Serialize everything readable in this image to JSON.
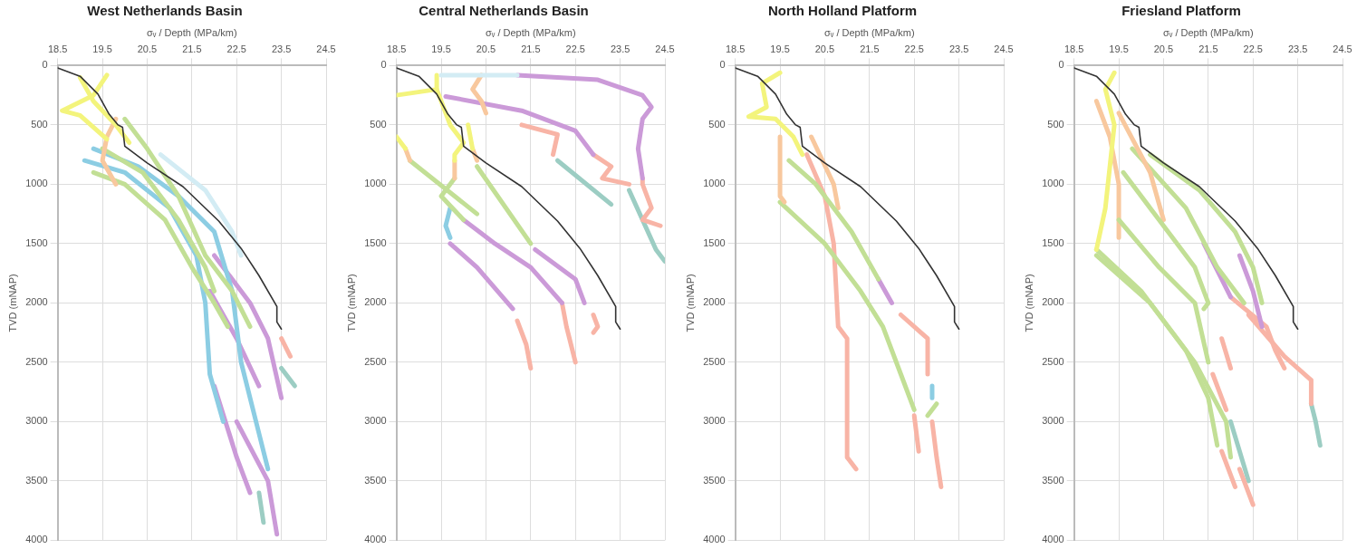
{
  "chart_data": [
    {
      "type": "line",
      "title": "West Netherlands Basin",
      "xlabel": "σᵥ / Depth (MPa/km)",
      "ylabel": "TVD (mNAP)",
      "xlim": [
        18.5,
        24.5
      ],
      "xticks": [
        18.5,
        19.5,
        20.5,
        21.5,
        22.5,
        23.5,
        24.5
      ],
      "ylim": [
        4000,
        0
      ],
      "yticks": [
        0,
        500,
        1000,
        1500,
        2000,
        2500,
        3000,
        3500,
        4000
      ],
      "grid": true,
      "legend": false,
      "marker": "none",
      "line_style": "solid",
      "series": [
        {
          "color": "#333333",
          "x": [
            18.5,
            19.0,
            19.4,
            19.65,
            19.85,
            19.95,
            20.0,
            20.5,
            21.3,
            22.1,
            22.6,
            23.0,
            23.4,
            23.4,
            23.5
          ],
          "values": [
            20,
            90,
            240,
            410,
            500,
            520,
            680,
            820,
            1020,
            1310,
            1540,
            1770,
            2030,
            2160,
            2220
          ]
        },
        {
          "color": "#f3f47c",
          "x": [
            19.6,
            19.3,
            18.6,
            19.0,
            19.6
          ],
          "values": [
            80,
            250,
            380,
            420,
            620
          ]
        },
        {
          "color": "#f3f47c",
          "x": [
            19.0,
            19.3,
            19.8,
            20.1
          ],
          "values": [
            100,
            300,
            500,
            650
          ]
        },
        {
          "color": "#f8c89e",
          "x": [
            19.8,
            19.6,
            19.5,
            19.8
          ],
          "values": [
            450,
            600,
            800,
            1000
          ]
        },
        {
          "color": "#c2df95",
          "x": [
            20.0,
            20.5,
            21.2,
            21.8,
            22.4,
            22.8
          ],
          "values": [
            450,
            700,
            1100,
            1600,
            1900,
            2200
          ]
        },
        {
          "color": "#c2df95",
          "x": [
            19.3,
            20.0,
            20.9,
            21.5,
            22.0,
            22.3
          ],
          "values": [
            900,
            1000,
            1300,
            1700,
            2000,
            2200
          ]
        },
        {
          "color": "#c2df95",
          "x": [
            19.5,
            20.4,
            21.2,
            21.8,
            22.0
          ],
          "values": [
            700,
            900,
            1300,
            1700,
            1900
          ]
        },
        {
          "color": "#8ccde3",
          "x": [
            19.3,
            20.3,
            21.2,
            22.0,
            22.4,
            22.6,
            23.0,
            23.2
          ],
          "values": [
            700,
            850,
            1100,
            1400,
            1900,
            2500,
            3100,
            3400
          ]
        },
        {
          "color": "#8ccde3",
          "x": [
            19.1,
            20.0,
            21.0,
            21.6,
            21.8,
            21.9,
            22.2
          ],
          "values": [
            800,
            900,
            1200,
            1600,
            2000,
            2600,
            3000
          ]
        },
        {
          "color": "#d3ecf4",
          "x": [
            20.8,
            21.8,
            22.4,
            22.6
          ],
          "values": [
            750,
            1050,
            1400,
            1600
          ]
        },
        {
          "color": "#cb9ad8",
          "x": [
            22.0,
            22.8,
            23.2,
            23.5
          ],
          "values": [
            1600,
            2000,
            2300,
            2800
          ]
        },
        {
          "color": "#cb9ad8",
          "x": [
            21.9,
            22.5,
            23.0
          ],
          "values": [
            1900,
            2300,
            2700
          ]
        },
        {
          "color": "#cb9ad8",
          "x": [
            22.0,
            22.5,
            22.8
          ],
          "values": [
            2700,
            3300,
            3600
          ]
        },
        {
          "color": "#cb9ad8",
          "x": [
            22.5,
            23.2,
            23.4
          ],
          "values": [
            3000,
            3500,
            3950
          ]
        },
        {
          "color": "#9ccdc3",
          "x": [
            23.5,
            23.8
          ],
          "values": [
            2550,
            2700
          ]
        },
        {
          "color": "#9ccdc3",
          "x": [
            23.0,
            23.1
          ],
          "values": [
            3600,
            3850
          ]
        },
        {
          "color": "#f8b4a6",
          "x": [
            23.5,
            23.7
          ],
          "values": [
            2300,
            2450
          ]
        }
      ]
    },
    {
      "type": "line",
      "title": "Central Netherlands Basin",
      "xlabel": "σᵥ / Depth (MPa/km)",
      "ylabel": "TVD (mNAP)",
      "xlim": [
        18.5,
        24.5
      ],
      "xticks": [
        18.5,
        19.5,
        20.5,
        21.5,
        22.5,
        23.5,
        24.5
      ],
      "ylim": [
        4000,
        0
      ],
      "yticks": [
        0,
        500,
        1000,
        1500,
        2000,
        2500,
        3000,
        3500,
        4000
      ],
      "grid": true,
      "legend": false,
      "marker": "none",
      "line_style": "solid",
      "series": [
        {
          "color": "#333333",
          "x": [
            18.5,
            19.0,
            19.4,
            19.65,
            19.85,
            19.95,
            20.0,
            20.5,
            21.3,
            22.1,
            22.6,
            23.0,
            23.4,
            23.4,
            23.5
          ],
          "values": [
            20,
            90,
            240,
            410,
            500,
            520,
            680,
            820,
            1020,
            1310,
            1540,
            1770,
            2030,
            2160,
            2220
          ]
        },
        {
          "color": "#d3ecf4",
          "x": [
            19.5,
            21.2
          ],
          "values": [
            80,
            80
          ]
        },
        {
          "color": "#cb9ad8",
          "x": [
            21.2,
            23.0,
            24.0,
            24.2,
            24.0,
            23.9,
            24.0
          ],
          "values": [
            80,
            120,
            250,
            350,
            450,
            700,
            950
          ]
        },
        {
          "color": "#f8b4a6",
          "x": [
            24.0,
            24.0,
            24.2,
            24.0,
            24.4
          ],
          "values": [
            950,
            1000,
            1200,
            1300,
            1350
          ]
        },
        {
          "color": "#9ccdc3",
          "x": [
            23.7,
            24.3,
            24.5
          ],
          "values": [
            1050,
            1550,
            1650
          ]
        },
        {
          "color": "#f8c89e",
          "x": [
            20.4,
            20.2,
            20.4,
            20.5
          ],
          "values": [
            80,
            200,
            300,
            400
          ]
        },
        {
          "color": "#cb9ad8",
          "x": [
            19.6,
            21.3,
            22.5,
            22.9
          ],
          "values": [
            260,
            380,
            550,
            750
          ]
        },
        {
          "color": "#f8b4a6",
          "x": [
            21.3,
            22.1,
            22.0
          ],
          "values": [
            500,
            580,
            750
          ]
        },
        {
          "color": "#9ccdc3",
          "x": [
            22.1,
            23.3
          ],
          "values": [
            800,
            1170
          ]
        },
        {
          "color": "#f8b4a6",
          "x": [
            22.9,
            23.3,
            23.1,
            23.7
          ],
          "values": [
            750,
            850,
            950,
            1000
          ]
        },
        {
          "color": "#f3f47c",
          "x": [
            19.4,
            19.4,
            18.5
          ],
          "values": [
            80,
            200,
            250
          ]
        },
        {
          "color": "#f3f47c",
          "x": [
            19.4,
            19.7,
            20.0,
            19.8,
            19.8
          ],
          "values": [
            200,
            500,
            650,
            750,
            800
          ]
        },
        {
          "color": "#f8c89e",
          "x": [
            19.8,
            19.8
          ],
          "values": [
            800,
            950
          ]
        },
        {
          "color": "#c2df95",
          "x": [
            19.8,
            19.5,
            20.0
          ],
          "values": [
            950,
            1100,
            1300
          ]
        },
        {
          "color": "#cb9ad8",
          "x": [
            20.0,
            20.7,
            21.5,
            22.2
          ],
          "values": [
            1300,
            1500,
            1700,
            2000
          ]
        },
        {
          "color": "#f8b4a6",
          "x": [
            22.2,
            22.3,
            22.5
          ],
          "values": [
            2000,
            2200,
            2500
          ]
        },
        {
          "color": "#f3f47c",
          "x": [
            20.1,
            20.2
          ],
          "values": [
            500,
            700
          ]
        },
        {
          "color": "#f8c89e",
          "x": [
            20.2,
            20.3
          ],
          "values": [
            700,
            800
          ]
        },
        {
          "color": "#c2df95",
          "x": [
            20.3,
            21.5
          ],
          "values": [
            850,
            1500
          ]
        },
        {
          "color": "#cb9ad8",
          "x": [
            21.6,
            22.5,
            22.7
          ],
          "values": [
            1550,
            1800,
            2000
          ]
        },
        {
          "color": "#f8b4a6",
          "x": [
            22.9,
            23.0,
            22.9
          ],
          "values": [
            2100,
            2200,
            2250
          ]
        },
        {
          "color": "#f3f47c",
          "x": [
            18.5,
            18.7
          ],
          "values": [
            600,
            700
          ]
        },
        {
          "color": "#f8c89e",
          "x": [
            18.7,
            18.8
          ],
          "values": [
            700,
            800
          ]
        },
        {
          "color": "#c2df95",
          "x": [
            18.8,
            19.8,
            20.3
          ],
          "values": [
            800,
            1100,
            1250
          ]
        },
        {
          "color": "#8ccde3",
          "x": [
            19.7,
            19.6,
            19.7
          ],
          "values": [
            1200,
            1350,
            1450
          ]
        },
        {
          "color": "#cb9ad8",
          "x": [
            19.7,
            20.3,
            21.1
          ],
          "values": [
            1500,
            1700,
            2050
          ]
        },
        {
          "color": "#f8b4a6",
          "x": [
            21.2,
            21.4,
            21.5
          ],
          "values": [
            2150,
            2350,
            2550
          ]
        }
      ]
    },
    {
      "type": "line",
      "title": "North Holland Platform",
      "xlabel": "σᵥ / Depth (MPa/km)",
      "ylabel": "TVD (mNAP)",
      "xlim": [
        18.5,
        24.5
      ],
      "xticks": [
        18.5,
        19.5,
        20.5,
        21.5,
        22.5,
        23.5,
        24.5
      ],
      "ylim": [
        4000,
        0
      ],
      "yticks": [
        0,
        500,
        1000,
        1500,
        2000,
        2500,
        3000,
        3500,
        4000
      ],
      "grid": true,
      "legend": false,
      "marker": "none",
      "line_style": "solid",
      "series": [
        {
          "color": "#333333",
          "x": [
            18.5,
            19.0,
            19.4,
            19.65,
            19.85,
            19.95,
            20.0,
            20.5,
            21.3,
            22.1,
            22.6,
            23.0,
            23.4,
            23.4,
            23.5
          ],
          "values": [
            20,
            90,
            240,
            410,
            500,
            520,
            680,
            820,
            1020,
            1310,
            1540,
            1770,
            2030,
            2160,
            2220
          ]
        },
        {
          "color": "#f3f47c",
          "x": [
            19.5,
            19.1,
            19.2,
            18.8,
            19.4,
            19.8,
            20.0
          ],
          "values": [
            60,
            150,
            350,
            430,
            450,
            600,
            750
          ]
        },
        {
          "color": "#f8c89e",
          "x": [
            19.5,
            19.5,
            19.6
          ],
          "values": [
            600,
            1100,
            1150
          ]
        },
        {
          "color": "#c2df95",
          "x": [
            19.5,
            20.5,
            21.3,
            21.8,
            22.2,
            22.5
          ],
          "values": [
            1150,
            1500,
            1900,
            2200,
            2600,
            2900
          ]
        },
        {
          "color": "#f8b4a6",
          "x": [
            22.5,
            22.6
          ],
          "values": [
            2950,
            3250
          ]
        },
        {
          "color": "#c2df95",
          "x": [
            19.7,
            20.3,
            21.1,
            21.7
          ],
          "values": [
            800,
            1000,
            1400,
            1800
          ]
        },
        {
          "color": "#cb9ad8",
          "x": [
            21.7,
            22.0
          ],
          "values": [
            1800,
            2000
          ]
        },
        {
          "color": "#f8b4a6",
          "x": [
            22.2,
            22.8,
            22.8
          ],
          "values": [
            2100,
            2300,
            2600
          ]
        },
        {
          "color": "#8ccde3",
          "x": [
            22.9,
            22.9
          ],
          "values": [
            2700,
            2800
          ]
        },
        {
          "color": "#c2df95",
          "x": [
            23.0,
            22.8
          ],
          "values": [
            2850,
            2950
          ]
        },
        {
          "color": "#f8b4a6",
          "x": [
            22.9,
            23.0,
            23.1
          ],
          "values": [
            3000,
            3300,
            3550
          ]
        },
        {
          "color": "#f8b4a6",
          "x": [
            20.1,
            20.5,
            20.7,
            20.8,
            21.0,
            21.0,
            21.2
          ],
          "values": [
            750,
            1100,
            1500,
            2200,
            2300,
            3300,
            3400
          ]
        },
        {
          "color": "#f8c89e",
          "x": [
            20.2,
            20.7,
            20.8
          ],
          "values": [
            600,
            1000,
            1200
          ]
        }
      ]
    },
    {
      "type": "line",
      "title": "Friesland Platform",
      "xlabel": "σᵥ / Depth (MPa/km)",
      "ylabel": "TVD (mNAP)",
      "xlim": [
        18.5,
        24.5
      ],
      "xticks": [
        18.5,
        19.5,
        20.5,
        21.5,
        22.5,
        23.5,
        24.5
      ],
      "ylim": [
        4000,
        0
      ],
      "yticks": [
        0,
        500,
        1000,
        1500,
        2000,
        2500,
        3000,
        3500,
        4000
      ],
      "grid": true,
      "legend": false,
      "marker": "none",
      "line_style": "solid",
      "series": [
        {
          "color": "#333333",
          "x": [
            18.5,
            19.0,
            19.4,
            19.65,
            19.85,
            19.95,
            20.0,
            20.5,
            21.3,
            22.1,
            22.6,
            23.0,
            23.4,
            23.4,
            23.5
          ],
          "values": [
            20,
            90,
            240,
            410,
            500,
            520,
            680,
            820,
            1020,
            1310,
            1540,
            1770,
            2030,
            2160,
            2220
          ]
        },
        {
          "color": "#f3f47c",
          "x": [
            19.4,
            19.2,
            19.4,
            19.2,
            19.0
          ],
          "values": [
            60,
            200,
            500,
            1200,
            1550
          ]
        },
        {
          "color": "#c2df95",
          "x": [
            19.0,
            20.0,
            21.0,
            21.5,
            21.7
          ],
          "values": [
            1550,
            1900,
            2400,
            2800,
            3200
          ]
        },
        {
          "color": "#f8b4a6",
          "x": [
            21.8,
            22.1
          ],
          "values": [
            3250,
            3550
          ]
        },
        {
          "color": "#c2df95",
          "x": [
            19.0,
            20.2,
            21.2,
            21.9,
            22.0
          ],
          "values": [
            1600,
            2000,
            2500,
            3000,
            3300
          ]
        },
        {
          "color": "#f8b4a6",
          "x": [
            22.2,
            22.5
          ],
          "values": [
            3400,
            3700
          ]
        },
        {
          "color": "#c2df95",
          "x": [
            19.5,
            20.4,
            21.2,
            21.5
          ],
          "values": [
            1300,
            1700,
            2000,
            2500
          ]
        },
        {
          "color": "#f8b4a6",
          "x": [
            21.6,
            21.9
          ],
          "values": [
            2600,
            2900
          ]
        },
        {
          "color": "#9ccdc3",
          "x": [
            22.0,
            22.4
          ],
          "values": [
            3000,
            3500
          ]
        },
        {
          "color": "#c2df95",
          "x": [
            19.6,
            20.6,
            21.2,
            21.5,
            21.4
          ],
          "values": [
            900,
            1400,
            1700,
            2000,
            2050
          ]
        },
        {
          "color": "#f8c89e",
          "x": [
            19.0,
            19.3,
            19.5,
            19.5
          ],
          "values": [
            300,
            600,
            1000,
            1450
          ]
        },
        {
          "color": "#f8c89e",
          "x": [
            19.5,
            20.2,
            20.5
          ],
          "values": [
            400,
            900,
            1300
          ]
        },
        {
          "color": "#c2df95",
          "x": [
            19.8,
            21.0,
            21.7,
            22.3
          ],
          "values": [
            700,
            1200,
            1700,
            2000
          ]
        },
        {
          "color": "#c2df95",
          "x": [
            20.2,
            21.3,
            22.1,
            22.5,
            22.7
          ],
          "values": [
            750,
            1050,
            1400,
            1700,
            2000
          ]
        },
        {
          "color": "#cb9ad8",
          "x": [
            21.4,
            21.8,
            22.0
          ],
          "values": [
            1500,
            1800,
            1950
          ]
        },
        {
          "color": "#cb9ad8",
          "x": [
            22.2,
            22.5,
            22.7
          ],
          "values": [
            1600,
            1900,
            2200
          ]
        },
        {
          "color": "#f8b4a6",
          "x": [
            22.0,
            22.8,
            23.0,
            23.2
          ],
          "values": [
            1950,
            2200,
            2400,
            2550
          ]
        },
        {
          "color": "#f8b4a6",
          "x": [
            22.4,
            23.2,
            23.8,
            23.8
          ],
          "values": [
            2100,
            2450,
            2650,
            2850
          ]
        },
        {
          "color": "#9ccdc3",
          "x": [
            23.8,
            23.9,
            24.0
          ],
          "values": [
            2850,
            3000,
            3200
          ]
        },
        {
          "color": "#f8b4a6",
          "x": [
            21.8,
            22.0
          ],
          "values": [
            2300,
            2550
          ]
        }
      ]
    }
  ]
}
